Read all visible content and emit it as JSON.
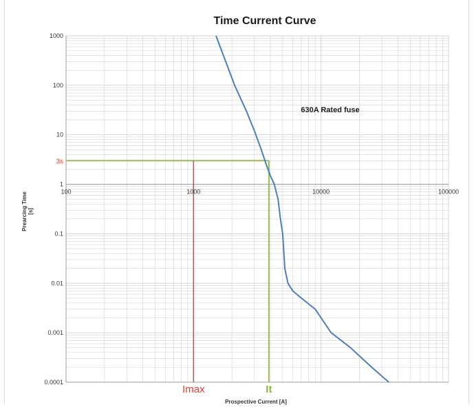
{
  "chart_data": {
    "type": "line",
    "title": "Time Current Curve",
    "xlabel": "Prospective Current [A]",
    "ylabel_lines": [
      "Prearcing Time",
      "[s]"
    ],
    "x_scale": "log",
    "y_scale": "log",
    "xlim": [
      100,
      100000
    ],
    "ylim": [
      0.0001,
      1000
    ],
    "x_ticks": [
      100,
      1000,
      10000,
      100000
    ],
    "x_tick_labels": [
      "100",
      "1000",
      "10000",
      "100000"
    ],
    "y_ticks": [
      1000,
      100,
      10,
      1,
      0.1,
      0.01,
      0.001,
      0.0001
    ],
    "y_tick_labels": [
      "1000",
      "100",
      "10",
      "1",
      "0.1",
      "0.01",
      "0.001",
      "0.0001"
    ],
    "grid": true,
    "series": [
      {
        "color": "#4a7ebb",
        "x": [
          1500,
          2100,
          2600,
          3000,
          3400,
          3700,
          4000,
          4300,
          4600,
          4800,
          5000,
          5200,
          5500,
          6000,
          7000,
          9000,
          12000,
          17000,
          25000,
          34000
        ],
        "y": [
          1000,
          100,
          30,
          12,
          5,
          2.6,
          1.5,
          1,
          0.5,
          0.2,
          0.1,
          0.02,
          0.01,
          0.007,
          0.005,
          0.003,
          0.001,
          0.0005,
          0.0002,
          0.0001
        ]
      }
    ],
    "annotations": {
      "curve_label": "630A Rated fuse",
      "time_marker_label": "3s",
      "time_marker_value": 3,
      "imax_label": "Imax",
      "imax_value": 1000,
      "it_label": "It",
      "it_value": 3900
    },
    "colors": {
      "curve": "#4a7ebb",
      "imax_line": "#c0504d",
      "it_line": "#9bbb59",
      "imax_text": "#e03c31",
      "it_text": "#8db33a",
      "time_text": "#e03c31",
      "grid": "#d0d0d0",
      "axis": "#999999"
    }
  }
}
